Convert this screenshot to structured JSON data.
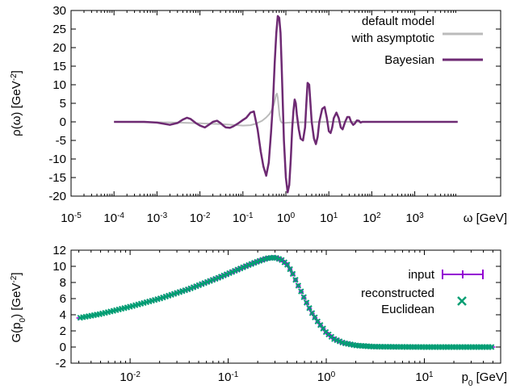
{
  "chart_data": [
    {
      "type": "line",
      "ylabel": "ρ(ω) [GeV",
      "ylabel_sup": "-2",
      "ylabel_end": "]",
      "xlabel": "ω [GeV]",
      "xscale": "log",
      "xlim": [
        1e-05,
        100000
      ],
      "ylim": [
        -20,
        30
      ],
      "yticks": [
        30,
        25,
        20,
        15,
        10,
        5,
        0,
        -5,
        -10,
        -15,
        -20
      ],
      "xticks": [
        {
          "base": "10",
          "exp": "-5",
          "value": 1e-05
        },
        {
          "base": "10",
          "exp": "-4",
          "value": 0.0001
        },
        {
          "base": "10",
          "exp": "-3",
          "value": 0.001
        },
        {
          "base": "10",
          "exp": "-2",
          "value": 0.01
        },
        {
          "base": "10",
          "exp": "-1",
          "value": 0.1
        },
        {
          "base": "10",
          "exp": "0",
          "value": 1
        },
        {
          "base": "10",
          "exp": "1",
          "value": 10
        },
        {
          "base": "10",
          "exp": "2",
          "value": 100
        },
        {
          "base": "10",
          "exp": "3",
          "value": 1000
        }
      ],
      "legend_position": "top-right",
      "series": [
        {
          "name_lines": [
            "default model",
            "with asymptotic"
          ],
          "color": "#bbbbbb",
          "x": [
            0.0001,
            0.001,
            0.003,
            0.01,
            0.03,
            0.06,
            0.1,
            0.15,
            0.2,
            0.28,
            0.35,
            0.42,
            0.47,
            0.52,
            0.56,
            0.59,
            0.62,
            0.65,
            0.68,
            0.71,
            0.75,
            0.8,
            0.9,
            1.2,
            2,
            10,
            100,
            1000
          ],
          "y": [
            0,
            -0.1,
            -0.2,
            -0.4,
            -0.6,
            -0.8,
            -1,
            -0.9,
            -0.5,
            0.3,
            1.2,
            2.2,
            3.2,
            4.5,
            6,
            7.3,
            7.6,
            6.5,
            4,
            1.8,
            0.3,
            -0.2,
            -0.3,
            -0.2,
            -0.1,
            0,
            0,
            0
          ]
        },
        {
          "name": "Bayesian",
          "color": "#6e2a73",
          "x": [
            0.0001,
            0.0005,
            0.001,
            0.002,
            0.003,
            0.004,
            0.005,
            0.006,
            0.008,
            0.01,
            0.013,
            0.016,
            0.02,
            0.025,
            0.03,
            0.035,
            0.04,
            0.05,
            0.06,
            0.08,
            0.1,
            0.12,
            0.15,
            0.18,
            0.22,
            0.26,
            0.3,
            0.35,
            0.4,
            0.45,
            0.5,
            0.55,
            0.6,
            0.65,
            0.7,
            0.75,
            0.8,
            0.85,
            0.9,
            1.0,
            1.1,
            1.2,
            1.3,
            1.4,
            1.5,
            1.6,
            1.7,
            1.8,
            2.0,
            2.2,
            2.5,
            2.8,
            3.0,
            3.2,
            3.5,
            4.0,
            4.5,
            5.0,
            5.5,
            6.0,
            7.0,
            8.0,
            9.0,
            10,
            11,
            12,
            13,
            15,
            17,
            19,
            21,
            24,
            27,
            30,
            33,
            37,
            40,
            45,
            50,
            55,
            60,
            70,
            80,
            90,
            100,
            120,
            150,
            200,
            300,
            500,
            1000,
            3000,
            10000
          ],
          "y": [
            0,
            0,
            -0.2,
            -0.8,
            -0.3,
            0.6,
            1.1,
            0.8,
            -0.3,
            -1,
            -1.5,
            -0.8,
            0,
            0.3,
            -0.3,
            -1,
            -1.5,
            -1.6,
            -1.2,
            -0.3,
            0.5,
            1.1,
            2.5,
            2.8,
            -2,
            -8,
            -12,
            -14.5,
            -11,
            -3,
            5,
            16,
            24,
            28.5,
            28,
            24,
            15,
            5,
            -5,
            -15,
            -19,
            -17,
            -10,
            -2,
            3,
            6,
            5,
            2,
            -2,
            -4.5,
            -5,
            -1.5,
            5,
            10.5,
            10,
            0,
            -4.5,
            -6,
            -4,
            0,
            3.5,
            4,
            1,
            -2.5,
            -3,
            -1.5,
            1,
            2.5,
            1,
            -1.5,
            -2,
            0,
            1.3,
            1.3,
            0,
            -0.8,
            -0.5,
            0.4,
            0.3,
            -0.2,
            0,
            0,
            0,
            0,
            0,
            0,
            0,
            0,
            0,
            0,
            0,
            0,
            0
          ]
        }
      ]
    },
    {
      "type": "scatter",
      "ylabel": "G(p",
      "ylabel_sub": "0",
      "ylabel_mid": ") [GeV",
      "ylabel_sup": "-2",
      "ylabel_end": "]",
      "xlabel": "p",
      "xlabel_sub": "0",
      "xlabel_end": " [GeV]",
      "xscale": "log",
      "xlim": [
        0.0025,
        60
      ],
      "ylim": [
        -2,
        12
      ],
      "yticks": [
        12,
        10,
        8,
        6,
        4,
        2,
        0,
        -2
      ],
      "xticks": [
        {
          "base": "10",
          "exp": "-2",
          "value": 0.01
        },
        {
          "base": "10",
          "exp": "-1",
          "value": 0.1
        },
        {
          "base": "10",
          "exp": "0",
          "value": 1
        },
        {
          "base": "10",
          "exp": "1",
          "value": 10
        }
      ],
      "legend_position": "top-right",
      "series": [
        {
          "name": "input",
          "color": "#9400d3",
          "marker": "errorbar"
        },
        {
          "name_lines": [
            "reconstructed",
            "Euclidean"
          ],
          "color": "#009e73",
          "marker": "cross"
        }
      ],
      "curve": {
        "x": [
          0.003,
          0.005,
          0.01,
          0.02,
          0.04,
          0.08,
          0.15,
          0.2,
          0.25,
          0.3,
          0.35,
          0.4,
          0.45,
          0.5,
          0.6,
          0.7,
          0.8,
          0.9,
          1.0,
          1.2,
          1.5,
          2.0,
          3.0,
          5.0,
          10,
          20,
          50
        ],
        "y": [
          3.6,
          4.1,
          5.0,
          6.0,
          7.2,
          8.6,
          10.0,
          10.6,
          11.0,
          11.1,
          10.8,
          10.2,
          9.2,
          8.0,
          6.0,
          4.4,
          3.3,
          2.5,
          1.8,
          1.0,
          0.5,
          0.2,
          0.05,
          0.02,
          0,
          0,
          0
        ]
      }
    }
  ]
}
